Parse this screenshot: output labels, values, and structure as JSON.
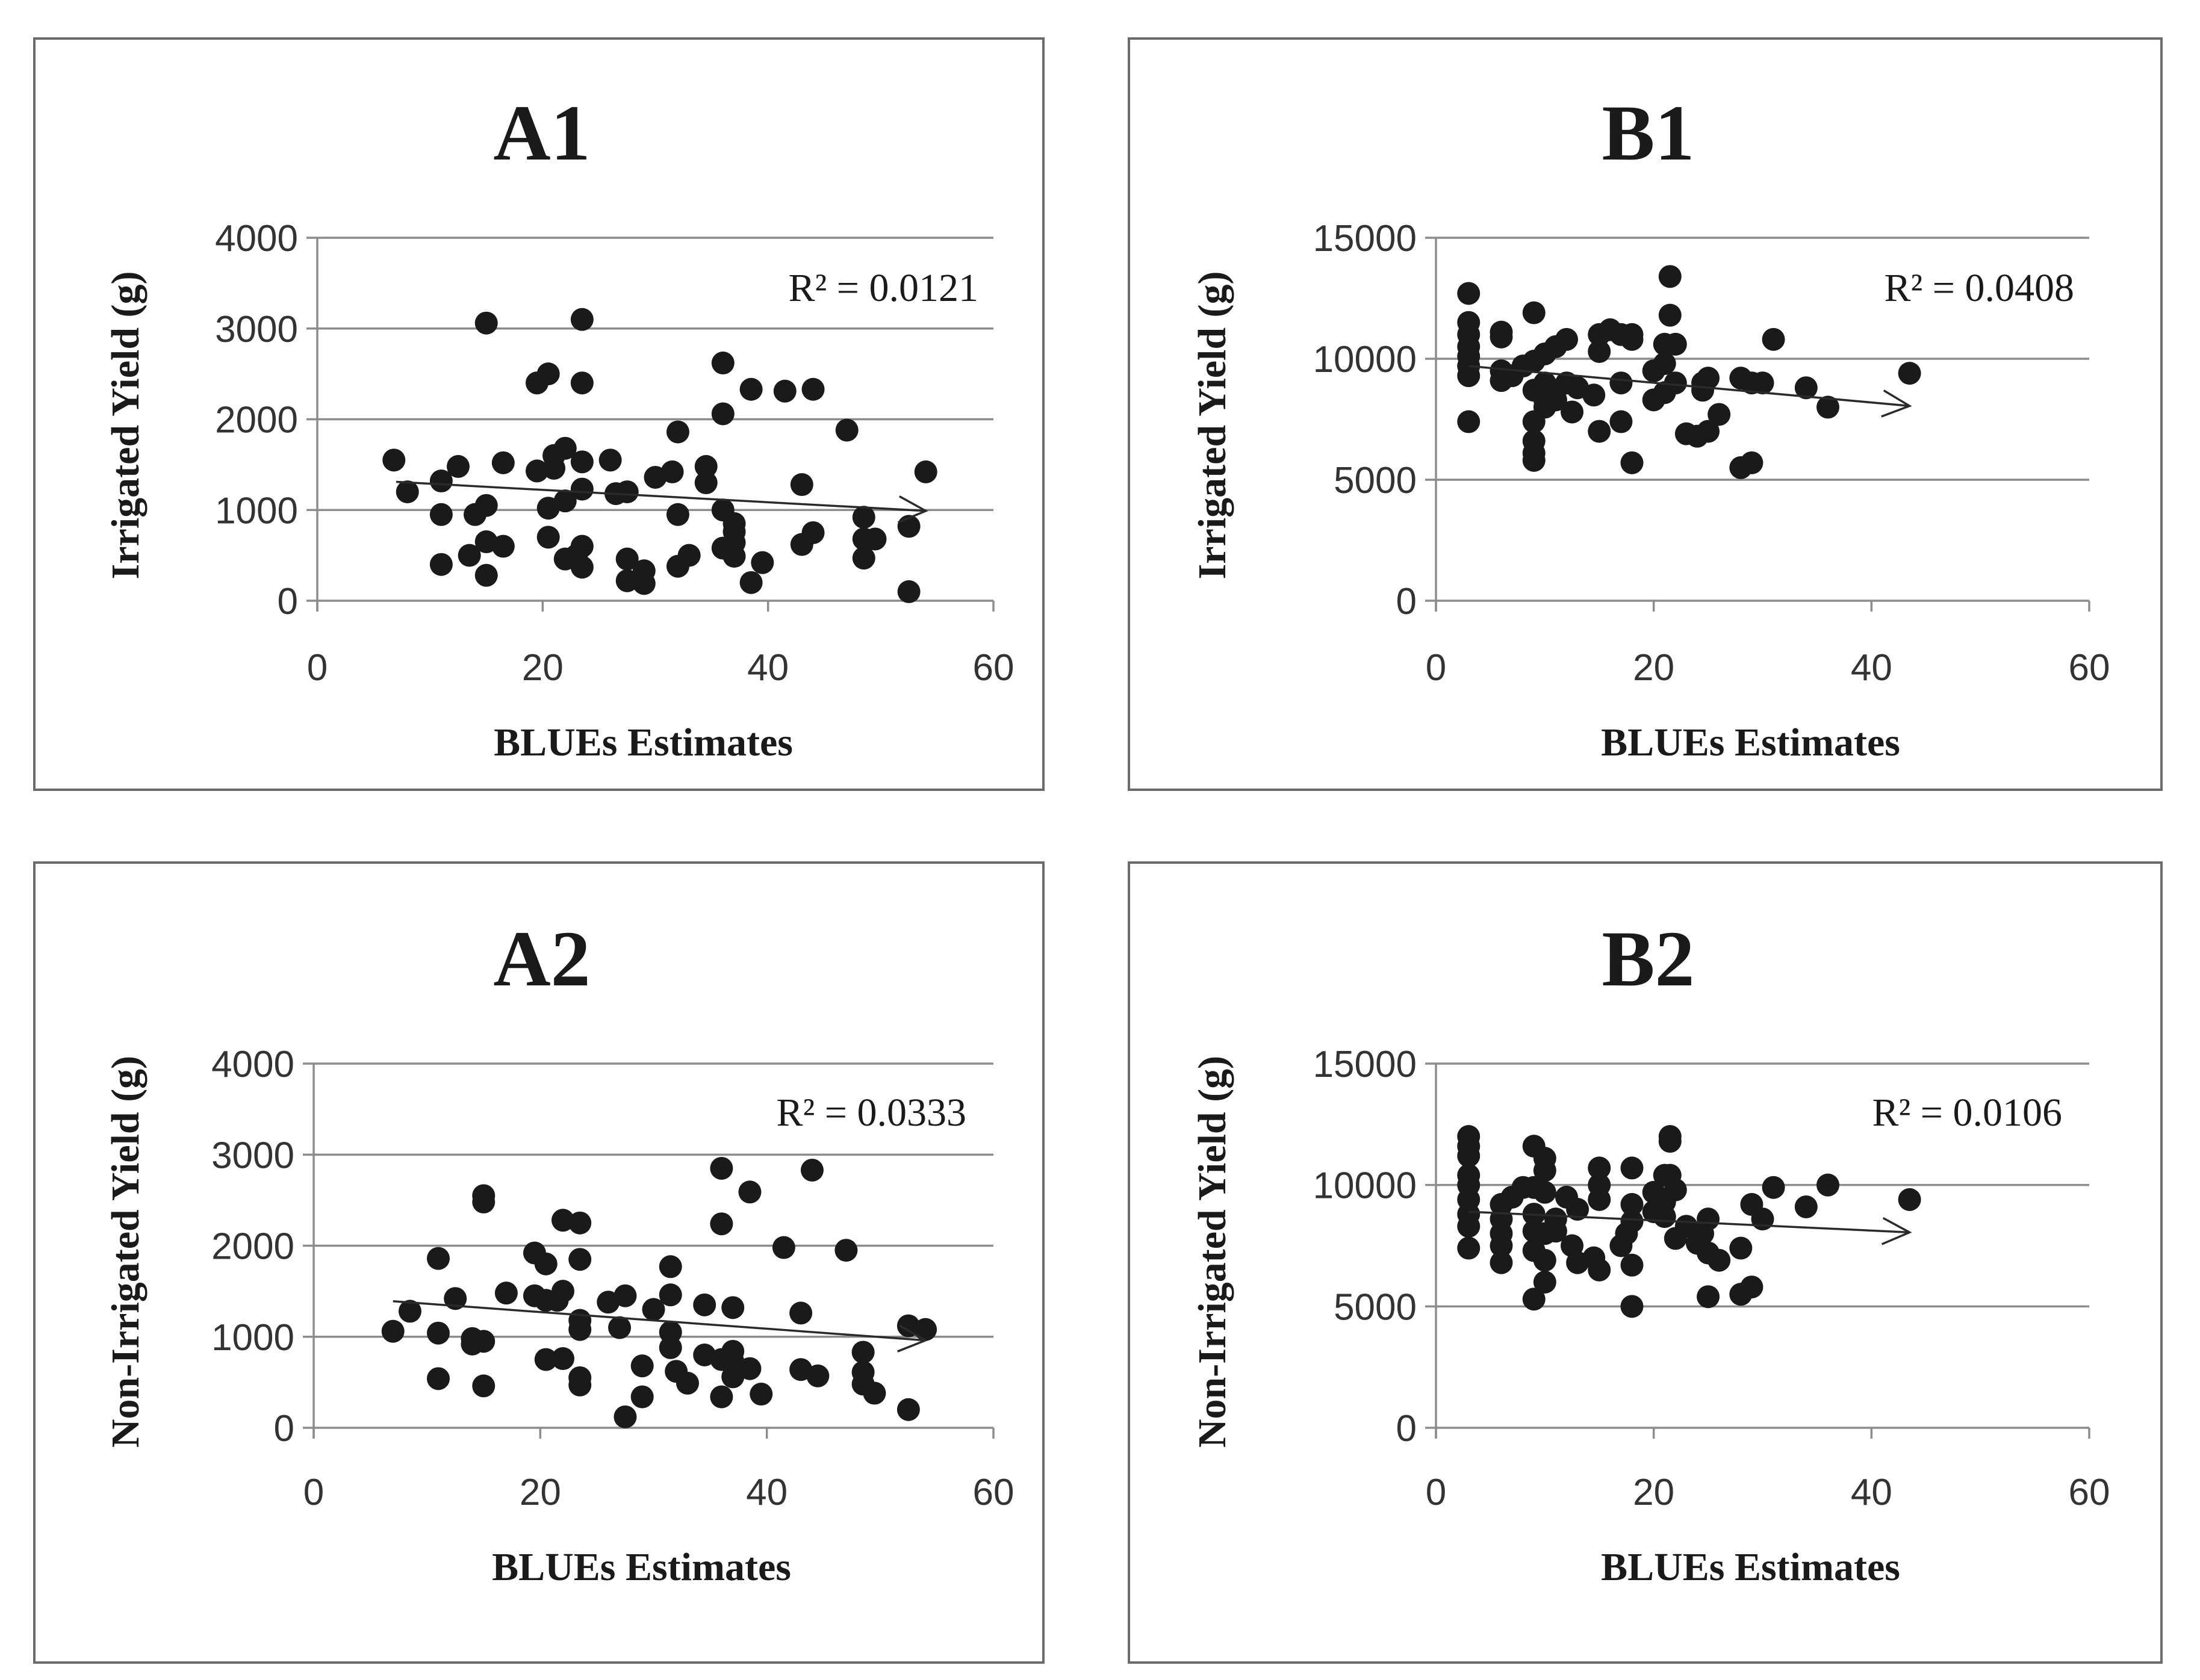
{
  "chart_data": [
    {
      "type": "scatter",
      "title": "A1",
      "xlabel": "BLUEs Estimates",
      "ylabel": "Irrigated Yield (g)",
      "annotation": "R² = 0.0121",
      "xlim": [
        0,
        60
      ],
      "ylim": [
        0,
        4000
      ],
      "xticks": [
        "0",
        "20",
        "40",
        "60"
      ],
      "yticks": [
        "0",
        "1000",
        "2000",
        "3000",
        "4000"
      ],
      "grid": "horizontal",
      "trendline": [
        [
          7,
          1310
        ],
        [
          54,
          990
        ]
      ],
      "points": [
        [
          6.8,
          1550
        ],
        [
          8,
          1200
        ],
        [
          11,
          1320
        ],
        [
          11,
          950
        ],
        [
          11,
          400
        ],
        [
          12.5,
          1480
        ],
        [
          13.5,
          500
        ],
        [
          14,
          950
        ],
        [
          15,
          3060
        ],
        [
          15,
          1050
        ],
        [
          15,
          650
        ],
        [
          15,
          280
        ],
        [
          16.5,
          600
        ],
        [
          16.5,
          1520
        ],
        [
          19.5,
          1430
        ],
        [
          19.5,
          2400
        ],
        [
          20.5,
          2500
        ],
        [
          20.5,
          1020
        ],
        [
          20.5,
          700
        ],
        [
          21,
          1600
        ],
        [
          21,
          1460
        ],
        [
          22,
          1680
        ],
        [
          22,
          1100
        ],
        [
          22,
          460
        ],
        [
          23,
          500
        ],
        [
          23.5,
          3100
        ],
        [
          23.5,
          2400
        ],
        [
          23.5,
          1530
        ],
        [
          23.5,
          1230
        ],
        [
          23.5,
          600
        ],
        [
          23.5,
          370
        ],
        [
          26,
          1550
        ],
        [
          26.5,
          1180
        ],
        [
          27.5,
          1200
        ],
        [
          27.5,
          460
        ],
        [
          27.5,
          220
        ],
        [
          29,
          190
        ],
        [
          29,
          330
        ],
        [
          30,
          1360
        ],
        [
          31.5,
          1420
        ],
        [
          32,
          1860
        ],
        [
          32,
          950
        ],
        [
          32,
          380
        ],
        [
          33,
          500
        ],
        [
          34.5,
          1300
        ],
        [
          34.5,
          1480
        ],
        [
          36,
          2620
        ],
        [
          36,
          2060
        ],
        [
          36,
          1000
        ],
        [
          36,
          580
        ],
        [
          37,
          850
        ],
        [
          37,
          760
        ],
        [
          37,
          640
        ],
        [
          37,
          490
        ],
        [
          38.5,
          2330
        ],
        [
          38.5,
          200
        ],
        [
          39.5,
          420
        ],
        [
          41.5,
          2310
        ],
        [
          43,
          1280
        ],
        [
          43,
          620
        ],
        [
          44,
          2330
        ],
        [
          44,
          750
        ],
        [
          47,
          1880
        ],
        [
          48.5,
          920
        ],
        [
          48.5,
          680
        ],
        [
          48.5,
          470
        ],
        [
          49.5,
          680
        ],
        [
          52.5,
          820
        ],
        [
          52.5,
          100
        ],
        [
          54,
          1420
        ]
      ]
    },
    {
      "type": "scatter",
      "title": "B1",
      "xlabel": "BLUEs Estimates",
      "ylabel": "Irrigated Yield (g)",
      "annotation": "R² = 0.0408",
      "xlim": [
        0,
        60
      ],
      "ylim": [
        0,
        15000
      ],
      "xticks": [
        "0",
        "20",
        "40",
        "60"
      ],
      "yticks": [
        "0",
        "5000",
        "10000",
        "15000"
      ],
      "grid": "horizontal",
      "trendline": [
        [
          3,
          9700
        ],
        [
          43.5,
          8050
        ]
      ],
      "points": [
        [
          3,
          12700
        ],
        [
          3,
          11500
        ],
        [
          3,
          11000
        ],
        [
          3,
          10500
        ],
        [
          3,
          10100
        ],
        [
          3,
          9700
        ],
        [
          3,
          9300
        ],
        [
          3,
          7400
        ],
        [
          6,
          11100
        ],
        [
          6,
          10900
        ],
        [
          6,
          9500
        ],
        [
          6,
          9100
        ],
        [
          7,
          9300
        ],
        [
          8,
          9700
        ],
        [
          9,
          11900
        ],
        [
          9,
          9900
        ],
        [
          9,
          8700
        ],
        [
          9,
          7400
        ],
        [
          9,
          6600
        ],
        [
          9,
          6100
        ],
        [
          9,
          5800
        ],
        [
          10,
          10200
        ],
        [
          10,
          9000
        ],
        [
          10,
          8300
        ],
        [
          10,
          8000
        ],
        [
          11,
          10500
        ],
        [
          11,
          8700
        ],
        [
          11,
          8300
        ],
        [
          12,
          10800
        ],
        [
          12,
          9000
        ],
        [
          12.5,
          7800
        ],
        [
          13,
          8800
        ],
        [
          14.5,
          8500
        ],
        [
          15,
          11000
        ],
        [
          15,
          10300
        ],
        [
          15,
          7000
        ],
        [
          16,
          11200
        ],
        [
          17,
          11000
        ],
        [
          17,
          9000
        ],
        [
          17,
          7400
        ],
        [
          18,
          11000
        ],
        [
          18,
          10800
        ],
        [
          18,
          5700
        ],
        [
          20,
          9500
        ],
        [
          20,
          8300
        ],
        [
          21,
          10600
        ],
        [
          21,
          9800
        ],
        [
          21,
          8600
        ],
        [
          21.5,
          13400
        ],
        [
          21.5,
          11800
        ],
        [
          22,
          10600
        ],
        [
          22,
          9000
        ],
        [
          23,
          6900
        ],
        [
          24,
          6800
        ],
        [
          24.5,
          9000
        ],
        [
          24.5,
          8700
        ],
        [
          25,
          9200
        ],
        [
          25,
          7000
        ],
        [
          26,
          7700
        ],
        [
          28,
          9200
        ],
        [
          28,
          5500
        ],
        [
          29,
          9000
        ],
        [
          29,
          5700
        ],
        [
          30,
          9000
        ],
        [
          31,
          10800
        ],
        [
          34,
          8800
        ],
        [
          36,
          8000
        ],
        [
          43.5,
          9400
        ]
      ]
    },
    {
      "type": "scatter",
      "title": "A2",
      "xlabel": "BLUEs Estimates",
      "ylabel": "Non-Irrigated Yield (g)",
      "annotation": "R² = 0.0333",
      "xlim": [
        0,
        60
      ],
      "ylim": [
        0,
        4000
      ],
      "xticks": [
        "0",
        "20",
        "40",
        "60"
      ],
      "yticks": [
        "0",
        "1000",
        "2000",
        "3000",
        "4000"
      ],
      "grid": "horizontal",
      "trendline": [
        [
          7,
          1390
        ],
        [
          54,
          960
        ]
      ],
      "points": [
        [
          7,
          1060
        ],
        [
          8.5,
          1280
        ],
        [
          11,
          1860
        ],
        [
          11,
          1040
        ],
        [
          11,
          540
        ],
        [
          12.5,
          1420
        ],
        [
          14,
          980
        ],
        [
          14,
          920
        ],
        [
          15,
          2550
        ],
        [
          15,
          2480
        ],
        [
          15,
          950
        ],
        [
          15,
          460
        ],
        [
          17,
          1480
        ],
        [
          19.5,
          1920
        ],
        [
          19.5,
          1450
        ],
        [
          20.5,
          1800
        ],
        [
          20.5,
          1400
        ],
        [
          20.5,
          750
        ],
        [
          21.5,
          1400
        ],
        [
          22,
          2280
        ],
        [
          22,
          1500
        ],
        [
          22,
          760
        ],
        [
          23.5,
          2250
        ],
        [
          23.5,
          1850
        ],
        [
          23.5,
          1180
        ],
        [
          23.5,
          1080
        ],
        [
          23.5,
          550
        ],
        [
          23.5,
          470
        ],
        [
          26,
          1380
        ],
        [
          27,
          1100
        ],
        [
          27.5,
          1450
        ],
        [
          27.5,
          120
        ],
        [
          29,
          680
        ],
        [
          29,
          340
        ],
        [
          30,
          1300
        ],
        [
          31.5,
          1770
        ],
        [
          31.5,
          1460
        ],
        [
          31.5,
          1050
        ],
        [
          31.5,
          880
        ],
        [
          32,
          620
        ],
        [
          33,
          490
        ],
        [
          34.5,
          1350
        ],
        [
          34.5,
          800
        ],
        [
          36,
          2850
        ],
        [
          36,
          2240
        ],
        [
          36,
          750
        ],
        [
          36,
          340
        ],
        [
          37,
          1320
        ],
        [
          37,
          840
        ],
        [
          37,
          730
        ],
        [
          37,
          560
        ],
        [
          38.5,
          2590
        ],
        [
          38.5,
          650
        ],
        [
          39.5,
          370
        ],
        [
          41.5,
          1980
        ],
        [
          43,
          1260
        ],
        [
          43,
          640
        ],
        [
          44,
          2830
        ],
        [
          44.5,
          570
        ],
        [
          47,
          1950
        ],
        [
          48.5,
          830
        ],
        [
          48.5,
          610
        ],
        [
          48.5,
          480
        ],
        [
          49.5,
          380
        ],
        [
          52.5,
          1120
        ],
        [
          52.5,
          200
        ],
        [
          54,
          1080
        ]
      ]
    },
    {
      "type": "scatter",
      "title": "B2",
      "xlabel": "BLUEs Estimates",
      "ylabel": "Non-Irrigated Yield (g)",
      "annotation": "R² = 0.0106",
      "xlim": [
        0,
        60
      ],
      "ylim": [
        0,
        15000
      ],
      "xticks": [
        "0",
        "20",
        "40",
        "60"
      ],
      "yticks": [
        "0",
        "5000",
        "10000",
        "15000"
      ],
      "grid": "horizontal",
      "trendline": [
        [
          3,
          8900
        ],
        [
          43.5,
          8050
        ]
      ],
      "points": [
        [
          3,
          12000
        ],
        [
          3,
          11600
        ],
        [
          3,
          11200
        ],
        [
          3,
          10400
        ],
        [
          3,
          10000
        ],
        [
          3,
          9400
        ],
        [
          3,
          8800
        ],
        [
          3,
          8300
        ],
        [
          3,
          7400
        ],
        [
          6,
          9200
        ],
        [
          6,
          8600
        ],
        [
          6,
          8000
        ],
        [
          6,
          7500
        ],
        [
          6,
          6800
        ],
        [
          7,
          9500
        ],
        [
          8,
          9900
        ],
        [
          9,
          11600
        ],
        [
          9,
          9900
        ],
        [
          9,
          8800
        ],
        [
          9,
          8100
        ],
        [
          9,
          7300
        ],
        [
          9,
          5300
        ],
        [
          10,
          11100
        ],
        [
          10,
          10600
        ],
        [
          10,
          9700
        ],
        [
          10,
          8000
        ],
        [
          10,
          6900
        ],
        [
          10,
          6000
        ],
        [
          11,
          8600
        ],
        [
          11,
          8100
        ],
        [
          12,
          9500
        ],
        [
          12.5,
          7500
        ],
        [
          13,
          6800
        ],
        [
          13,
          9000
        ],
        [
          14.5,
          7000
        ],
        [
          15,
          10700
        ],
        [
          15,
          10000
        ],
        [
          15,
          9400
        ],
        [
          15,
          6500
        ],
        [
          17,
          7500
        ],
        [
          17.5,
          8000
        ],
        [
          18,
          9200
        ],
        [
          18,
          8500
        ],
        [
          18,
          10700
        ],
        [
          18,
          6700
        ],
        [
          18,
          5000
        ],
        [
          20,
          9700
        ],
        [
          20,
          8900
        ],
        [
          21,
          10400
        ],
        [
          21,
          9300
        ],
        [
          21,
          8700
        ],
        [
          21.5,
          12000
        ],
        [
          21.5,
          11800
        ],
        [
          21.5,
          10400
        ],
        [
          22,
          9800
        ],
        [
          22,
          7800
        ],
        [
          23,
          8300
        ],
        [
          24,
          7600
        ],
        [
          24.5,
          8000
        ],
        [
          25,
          8600
        ],
        [
          25,
          7200
        ],
        [
          25,
          5400
        ],
        [
          26,
          6900
        ],
        [
          28,
          7400
        ],
        [
          28,
          5500
        ],
        [
          29,
          9200
        ],
        [
          29,
          5800
        ],
        [
          30,
          8600
        ],
        [
          31,
          9900
        ],
        [
          34,
          9100
        ],
        [
          36,
          10000
        ],
        [
          43.5,
          9400
        ]
      ]
    }
  ]
}
